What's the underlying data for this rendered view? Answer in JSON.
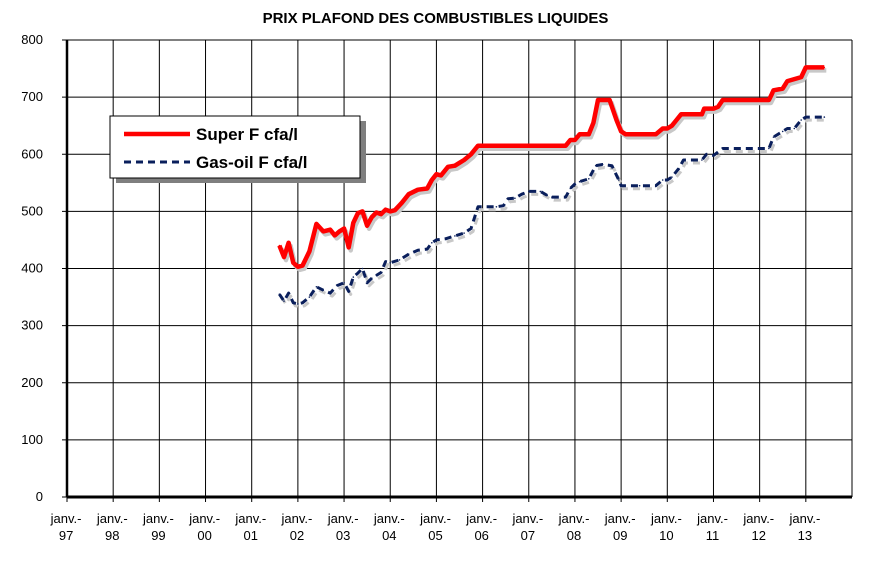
{
  "chart_data": {
    "type": "line",
    "title": "PRIX PLAFOND DES COMBUSTIBLES LIQUIDES",
    "xlabel": "",
    "ylabel": "",
    "ylim": [
      0,
      800
    ],
    "yticks": [
      0,
      100,
      200,
      300,
      400,
      500,
      600,
      700,
      800
    ],
    "xlim": [
      1997.0,
      2014.0
    ],
    "xticks": [
      {
        "line1": "janv.-",
        "line2": "97"
      },
      {
        "line1": "janv.-",
        "line2": "98"
      },
      {
        "line1": "janv.-",
        "line2": "99"
      },
      {
        "line1": "janv.-",
        "line2": "00"
      },
      {
        "line1": "janv.-",
        "line2": "01"
      },
      {
        "line1": "janv.-",
        "line2": "02"
      },
      {
        "line1": "janv.-",
        "line2": "03"
      },
      {
        "line1": "janv.-",
        "line2": "04"
      },
      {
        "line1": "janv.-",
        "line2": "05"
      },
      {
        "line1": "janv.-",
        "line2": "06"
      },
      {
        "line1": "janv.-",
        "line2": "07"
      },
      {
        "line1": "janv.-",
        "line2": "08"
      },
      {
        "line1": "janv.-",
        "line2": "09"
      },
      {
        "line1": "janv.-",
        "line2": "10"
      },
      {
        "line1": "janv.-",
        "line2": "11"
      },
      {
        "line1": "janv.-",
        "line2": "12"
      },
      {
        "line1": "janv.-",
        "line2": "13"
      }
    ],
    "grid": true,
    "legend_position": "top-left",
    "series": [
      {
        "name": "Super F cfa/l",
        "color": "#ff0000",
        "style": "solid",
        "points": [
          [
            2001.6,
            440
          ],
          [
            2001.7,
            420
          ],
          [
            2001.8,
            445
          ],
          [
            2001.9,
            410
          ],
          [
            2002.0,
            403
          ],
          [
            2002.1,
            405
          ],
          [
            2002.25,
            430
          ],
          [
            2002.4,
            478
          ],
          [
            2002.55,
            465
          ],
          [
            2002.7,
            468
          ],
          [
            2002.8,
            458
          ],
          [
            2002.9,
            465
          ],
          [
            2003.0,
            470
          ],
          [
            2003.1,
            437
          ],
          [
            2003.2,
            480
          ],
          [
            2003.3,
            497
          ],
          [
            2003.4,
            500
          ],
          [
            2003.5,
            475
          ],
          [
            2003.6,
            490
          ],
          [
            2003.7,
            498
          ],
          [
            2003.8,
            495
          ],
          [
            2003.9,
            503
          ],
          [
            2004.0,
            500
          ],
          [
            2004.1,
            502
          ],
          [
            2004.25,
            515
          ],
          [
            2004.4,
            530
          ],
          [
            2004.6,
            538
          ],
          [
            2004.8,
            540
          ],
          [
            2004.9,
            555
          ],
          [
            2005.0,
            565
          ],
          [
            2005.1,
            563
          ],
          [
            2005.25,
            578
          ],
          [
            2005.4,
            580
          ],
          [
            2005.5,
            585
          ],
          [
            2005.6,
            590
          ],
          [
            2005.75,
            600
          ],
          [
            2005.9,
            615
          ],
          [
            2006.3,
            615
          ],
          [
            2006.8,
            615
          ],
          [
            2007.4,
            615
          ],
          [
            2007.8,
            615
          ],
          [
            2007.9,
            625
          ],
          [
            2008.0,
            625
          ],
          [
            2008.1,
            635
          ],
          [
            2008.3,
            635
          ],
          [
            2008.4,
            655
          ],
          [
            2008.5,
            695
          ],
          [
            2008.75,
            695
          ],
          [
            2008.9,
            660
          ],
          [
            2009.0,
            640
          ],
          [
            2009.1,
            635
          ],
          [
            2009.4,
            635
          ],
          [
            2009.75,
            635
          ],
          [
            2009.9,
            645
          ],
          [
            2010.0,
            645
          ],
          [
            2010.1,
            650
          ],
          [
            2010.2,
            660
          ],
          [
            2010.3,
            670
          ],
          [
            2010.75,
            670
          ],
          [
            2010.8,
            680
          ],
          [
            2011.0,
            680
          ],
          [
            2011.1,
            683
          ],
          [
            2011.2,
            695
          ],
          [
            2011.75,
            695
          ],
          [
            2012.2,
            695
          ],
          [
            2012.25,
            703
          ],
          [
            2012.3,
            712
          ],
          [
            2012.5,
            715
          ],
          [
            2012.6,
            728
          ],
          [
            2012.9,
            735
          ],
          [
            2013.0,
            752
          ],
          [
            2013.4,
            752
          ]
        ]
      },
      {
        "name": "Gas-oil F cfa/l",
        "color": "#0a1f5c",
        "style": "dashed",
        "points": [
          [
            2001.6,
            355
          ],
          [
            2001.7,
            343
          ],
          [
            2001.8,
            357
          ],
          [
            2001.9,
            340
          ],
          [
            2002.0,
            338
          ],
          [
            2002.1,
            340
          ],
          [
            2002.25,
            350
          ],
          [
            2002.4,
            368
          ],
          [
            2002.55,
            362
          ],
          [
            2002.7,
            357
          ],
          [
            2002.85,
            370
          ],
          [
            2003.0,
            375
          ],
          [
            2003.1,
            360
          ],
          [
            2003.2,
            385
          ],
          [
            2003.3,
            392
          ],
          [
            2003.4,
            400
          ],
          [
            2003.5,
            375
          ],
          [
            2003.6,
            383
          ],
          [
            2003.7,
            388
          ],
          [
            2003.8,
            393
          ],
          [
            2003.9,
            412
          ],
          [
            2004.0,
            410
          ],
          [
            2004.2,
            415
          ],
          [
            2004.4,
            425
          ],
          [
            2004.6,
            432
          ],
          [
            2004.8,
            434
          ],
          [
            2004.9,
            445
          ],
          [
            2005.0,
            450
          ],
          [
            2005.2,
            452
          ],
          [
            2005.4,
            457
          ],
          [
            2005.6,
            462
          ],
          [
            2005.75,
            470
          ],
          [
            2005.9,
            508
          ],
          [
            2006.3,
            508
          ],
          [
            2006.45,
            510
          ],
          [
            2006.55,
            522
          ],
          [
            2006.7,
            523
          ],
          [
            2006.85,
            530
          ],
          [
            2007.0,
            535
          ],
          [
            2007.25,
            535
          ],
          [
            2007.4,
            528
          ],
          [
            2007.5,
            525
          ],
          [
            2007.8,
            525
          ],
          [
            2007.9,
            540
          ],
          [
            2008.0,
            548
          ],
          [
            2008.1,
            552
          ],
          [
            2008.3,
            557
          ],
          [
            2008.45,
            580
          ],
          [
            2008.6,
            582
          ],
          [
            2008.8,
            580
          ],
          [
            2008.95,
            555
          ],
          [
            2009.0,
            545
          ],
          [
            2009.4,
            545
          ],
          [
            2009.75,
            545
          ],
          [
            2009.9,
            555
          ],
          [
            2010.0,
            555
          ],
          [
            2010.1,
            560
          ],
          [
            2010.25,
            575
          ],
          [
            2010.35,
            590
          ],
          [
            2010.75,
            590
          ],
          [
            2010.85,
            600
          ],
          [
            2011.0,
            598
          ],
          [
            2011.2,
            610
          ],
          [
            2011.75,
            610
          ],
          [
            2012.2,
            610
          ],
          [
            2012.3,
            630
          ],
          [
            2012.5,
            640
          ],
          [
            2012.6,
            645
          ],
          [
            2012.75,
            645
          ],
          [
            2012.9,
            660
          ],
          [
            2013.0,
            665
          ],
          [
            2013.4,
            665
          ]
        ]
      }
    ]
  }
}
